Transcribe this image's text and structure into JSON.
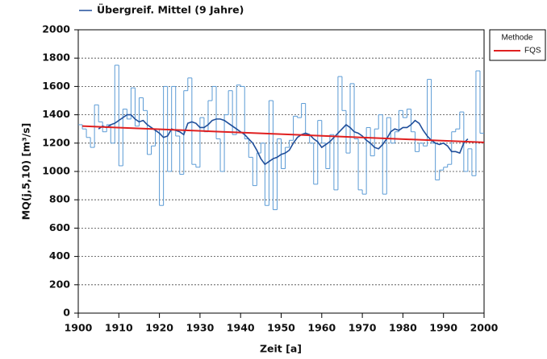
{
  "chart_data": {
    "type": "line",
    "x_label": "Zeit [a]",
    "y_label": "MQ(j,5,10) [m³/s]",
    "legend_title": "Methode",
    "xlim": [
      1900,
      2000
    ],
    "ylim": [
      0,
      2000
    ],
    "xticks": [
      1900,
      1910,
      1920,
      1930,
      1940,
      1950,
      1960,
      1970,
      1980,
      1990,
      2000
    ],
    "yticks": [
      0,
      200,
      400,
      600,
      800,
      1000,
      1200,
      1400,
      1600,
      1800,
      2000
    ],
    "grid": true,
    "series": [
      {
        "color": "#5b9bd5",
        "step": true,
        "x": [
          1901,
          1902,
          1903,
          1904,
          1905,
          1906,
          1907,
          1908,
          1909,
          1910,
          1911,
          1912,
          1913,
          1914,
          1915,
          1916,
          1917,
          1918,
          1919,
          1920,
          1921,
          1922,
          1923,
          1924,
          1925,
          1926,
          1927,
          1928,
          1929,
          1930,
          1931,
          1932,
          1933,
          1934,
          1935,
          1936,
          1937,
          1938,
          1939,
          1940,
          1941,
          1942,
          1943,
          1944,
          1945,
          1946,
          1947,
          1948,
          1949,
          1950,
          1951,
          1952,
          1953,
          1954,
          1955,
          1956,
          1957,
          1958,
          1959,
          1960,
          1961,
          1962,
          1963,
          1964,
          1965,
          1966,
          1967,
          1968,
          1969,
          1970,
          1971,
          1972,
          1973,
          1974,
          1975,
          1976,
          1977,
          1978,
          1979,
          1980,
          1981,
          1982,
          1983,
          1984,
          1985,
          1986,
          1987,
          1988,
          1989,
          1990,
          1991,
          1992,
          1993,
          1994,
          1995,
          1996,
          1997,
          1998,
          1999,
          2000
        ],
        "values": [
          1330,
          1300,
          1240,
          1170,
          1470,
          1350,
          1280,
          1330,
          1200,
          1750,
          1040,
          1440,
          1370,
          1590,
          1320,
          1520,
          1430,
          1120,
          1180,
          1300,
          760,
          1600,
          1000,
          1600,
          1250,
          980,
          1570,
          1660,
          1050,
          1030,
          1380,
          1280,
          1500,
          1600,
          1230,
          1000,
          1400,
          1570,
          1260,
          1610,
          1600,
          1230,
          1100,
          900,
          1130,
          1200,
          760,
          1500,
          730,
          1230,
          1020,
          1170,
          1220,
          1390,
          1380,
          1480,
          1260,
          1200,
          910,
          1360,
          1200,
          1020,
          1260,
          870,
          1670,
          1430,
          1130,
          1620,
          1230,
          870,
          840,
          1310,
          1110,
          1300,
          1400,
          840,
          1380,
          1200,
          1280,
          1430,
          1380,
          1440,
          1280,
          1140,
          1200,
          1180,
          1650,
          1200,
          940,
          1010,
          1030,
          1050,
          1280,
          1300,
          1420,
          1000,
          1160,
          970,
          1710,
          1270
        ]
      },
      {
        "name": "Übergreif. Mittel (9 Jahre)",
        "color": "#1f4e9a",
        "x": [
          1905,
          1906,
          1907,
          1908,
          1909,
          1910,
          1911,
          1912,
          1913,
          1914,
          1915,
          1916,
          1917,
          1918,
          1919,
          1920,
          1921,
          1922,
          1923,
          1924,
          1925,
          1926,
          1927,
          1928,
          1929,
          1930,
          1931,
          1932,
          1933,
          1934,
          1935,
          1936,
          1937,
          1938,
          1939,
          1940,
          1941,
          1942,
          1943,
          1944,
          1945,
          1946,
          1947,
          1948,
          1949,
          1950,
          1951,
          1952,
          1953,
          1954,
          1955,
          1956,
          1957,
          1958,
          1959,
          1960,
          1961,
          1962,
          1963,
          1964,
          1965,
          1966,
          1967,
          1968,
          1969,
          1970,
          1971,
          1972,
          1973,
          1974,
          1975,
          1976,
          1977,
          1978,
          1979,
          1980,
          1981,
          1982,
          1983,
          1984,
          1985,
          1986,
          1987,
          1988,
          1989,
          1990,
          1991,
          1992,
          1993,
          1994,
          1995,
          1996
        ],
        "values": [
          1300,
          1320,
          1310,
          1330,
          1340,
          1360,
          1380,
          1400,
          1400,
          1370,
          1350,
          1360,
          1330,
          1310,
          1290,
          1270,
          1240,
          1250,
          1300,
          1290,
          1280,
          1260,
          1340,
          1350,
          1340,
          1310,
          1310,
          1330,
          1360,
          1370,
          1370,
          1360,
          1340,
          1320,
          1300,
          1280,
          1260,
          1230,
          1200,
          1150,
          1090,
          1050,
          1070,
          1090,
          1100,
          1120,
          1130,
          1150,
          1200,
          1240,
          1260,
          1270,
          1260,
          1230,
          1210,
          1170,
          1190,
          1210,
          1240,
          1270,
          1300,
          1330,
          1310,
          1280,
          1270,
          1250,
          1220,
          1200,
          1170,
          1160,
          1190,
          1230,
          1280,
          1300,
          1290,
          1310,
          1310,
          1330,
          1360,
          1340,
          1290,
          1250,
          1220,
          1200,
          1190,
          1200,
          1180,
          1140,
          1140,
          1130,
          1200,
          1230
        ]
      },
      {
        "name": "FQS",
        "color": "#e02020",
        "x": [
          1901,
          2000
        ],
        "values": [
          1320,
          1205
        ]
      }
    ]
  }
}
